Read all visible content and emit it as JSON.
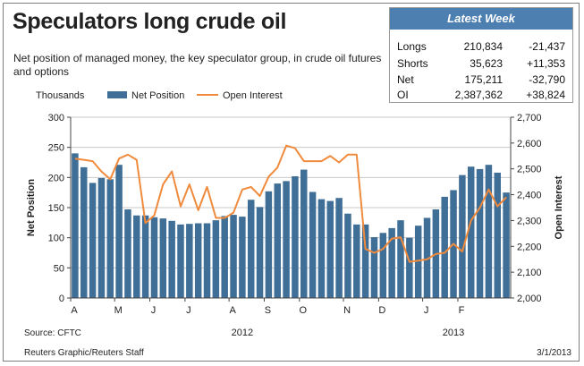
{
  "title": "Speculators long crude oil",
  "subtitle": "Net position of managed money, the key speculator group, in crude oil futures and options",
  "latest_week": {
    "header": "Latest Week",
    "rows": [
      {
        "label": "Longs",
        "value": "210,834",
        "change": "-21,437"
      },
      {
        "label": "Shorts",
        "value": "35,623",
        "change": "+11,353"
      },
      {
        "label": "Net",
        "value": "175,211",
        "change": "-32,790"
      },
      {
        "label": "OI",
        "value": "2,387,362",
        "change": "+38,824"
      }
    ]
  },
  "source": "Source: CFTC",
  "credit": "Reuters Graphic/Reuters Staff",
  "date": "3/1/2013",
  "colors": {
    "bar": "#3f6e96",
    "line": "#f08a3c",
    "header": "#4d7fb0"
  },
  "chart_data": {
    "type": "bar",
    "units_label": "Thousands",
    "ylabel": "Net Position",
    "y2label": "Open Interest",
    "ylim": [
      0,
      300
    ],
    "y2lim": [
      2000,
      2700
    ],
    "yticks": [
      "0",
      "50",
      "100",
      "150",
      "200",
      "250",
      "300"
    ],
    "y2ticks": [
      "2,000",
      "2,100",
      "2,200",
      "2,300",
      "2,400",
      "2,500",
      "2,600",
      "2,700"
    ],
    "month_labels": [
      {
        "label": "A",
        "index": 0
      },
      {
        "label": "M",
        "index": 5
      },
      {
        "label": "J",
        "index": 9
      },
      {
        "label": "J",
        "index": 13
      },
      {
        "label": "A",
        "index": 18
      },
      {
        "label": "S",
        "index": 22
      },
      {
        "label": "O",
        "index": 26
      },
      {
        "label": "N",
        "index": 31
      },
      {
        "label": "D",
        "index": 35
      },
      {
        "label": "J",
        "index": 40
      },
      {
        "label": "F",
        "index": 44
      }
    ],
    "year_labels": [
      {
        "label": "2012",
        "index": 19.5
      },
      {
        "label": "2013",
        "index": 43.5
      }
    ],
    "series": [
      {
        "name": "Net Position",
        "type": "bar",
        "values": [
          240,
          217,
          191,
          199,
          197,
          221,
          147,
          137,
          137,
          134,
          132,
          128,
          122,
          123,
          124,
          124,
          129,
          136,
          138,
          135,
          163,
          151,
          177,
          190,
          194,
          202,
          213,
          176,
          164,
          161,
          166,
          140,
          122,
          122,
          101,
          108,
          116,
          129,
          100,
          120,
          133,
          147,
          168,
          179,
          204,
          218,
          214,
          221,
          208,
          175
        ]
      },
      {
        "name": "Open Interest",
        "type": "line",
        "values": [
          2540,
          2535,
          2530,
          2490,
          2460,
          2540,
          2555,
          2535,
          2290,
          2320,
          2440,
          2490,
          2355,
          2440,
          2340,
          2430,
          2310,
          2310,
          2330,
          2420,
          2430,
          2395,
          2470,
          2505,
          2590,
          2580,
          2530,
          2530,
          2530,
          2550,
          2525,
          2555,
          2555,
          2190,
          2175,
          2190,
          2230,
          2235,
          2140,
          2145,
          2150,
          2170,
          2175,
          2210,
          2180,
          2300,
          2350,
          2420,
          2355,
          2390
        ]
      }
    ]
  }
}
